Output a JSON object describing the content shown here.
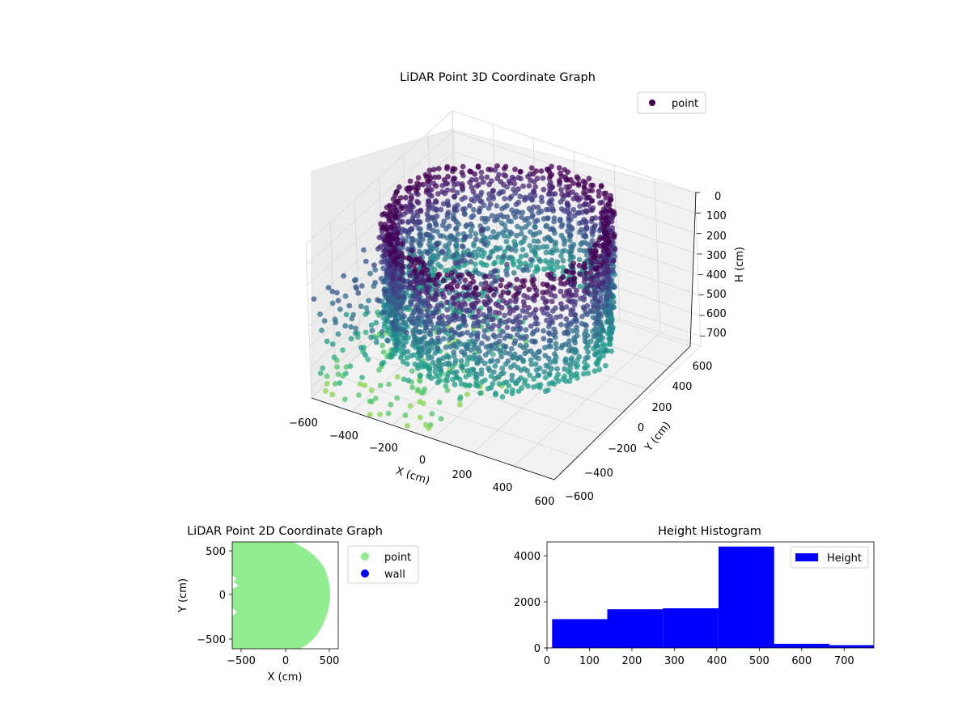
{
  "chart_data": [
    {
      "type": "scatter3d",
      "title": "LiDAR Point 3D Coordinate Graph",
      "xlabel": "X (cm)",
      "ylabel": "Y (cm)",
      "zlabel": "H (cm)",
      "xticks": [
        "−600",
        "−400",
        "−200",
        "0",
        "200",
        "400",
        "600"
      ],
      "yticks": [
        "−600",
        "−400",
        "−200",
        "0",
        "200",
        "400",
        "600"
      ],
      "zticks": [
        "0",
        "100",
        "200",
        "300",
        "400",
        "500",
        "600",
        "700"
      ],
      "xlim": [
        -600,
        600
      ],
      "ylim": [
        -600,
        600
      ],
      "zlim": [
        0,
        750
      ],
      "z_inverted": true,
      "grid": true,
      "legend": {
        "position": "top-right",
        "entries": [
          "point"
        ]
      },
      "series": [
        {
          "name": "point",
          "colormap": "viridis",
          "color_by": "H",
          "description_shape": "ring of points of radius ~450-500 cm rising in vertical columns"
        }
      ],
      "colors": {
        "legend_marker": "#440154"
      }
    },
    {
      "type": "scatter",
      "title": "LiDAR Point 2D Coordinate Graph",
      "xlabel": "X (cm)",
      "ylabel": "Y (cm)",
      "xticks": [
        "−500",
        "0",
        "500"
      ],
      "yticks": [
        "−500",
        "0",
        "500"
      ],
      "xlim": [
        -600,
        600
      ],
      "ylim": [
        -600,
        600
      ],
      "legend": {
        "position": "outside-right",
        "entries": [
          "point",
          "wall"
        ]
      },
      "series": [
        {
          "name": "point",
          "color": "#90ee90",
          "shape": "filled region bounded by ring of radius ~500 cm"
        },
        {
          "name": "wall",
          "color": "#0000ff",
          "points": []
        }
      ]
    },
    {
      "type": "histogram",
      "title": "Height Histogram",
      "xticks": [
        "0",
        "100",
        "200",
        "300",
        "400",
        "500",
        "600",
        "700"
      ],
      "yticks": [
        "0",
        "2000",
        "4000"
      ],
      "xlim": [
        0,
        770
      ],
      "ylim": [
        0,
        4600
      ],
      "legend": {
        "position": "top-right",
        "entries": [
          "Height"
        ]
      },
      "series": [
        {
          "name": "Height",
          "color": "#0000ff",
          "bins": [
            {
              "x0": 12,
              "x1": 142,
              "value": 1250
            },
            {
              "x0": 142,
              "x1": 273,
              "value": 1680
            },
            {
              "x0": 273,
              "x1": 404,
              "value": 1720
            },
            {
              "x0": 404,
              "x1": 535,
              "value": 4400
            },
            {
              "x0": 535,
              "x1": 665,
              "value": 180
            },
            {
              "x0": 665,
              "x1": 796,
              "value": 120
            }
          ]
        }
      ]
    }
  ]
}
